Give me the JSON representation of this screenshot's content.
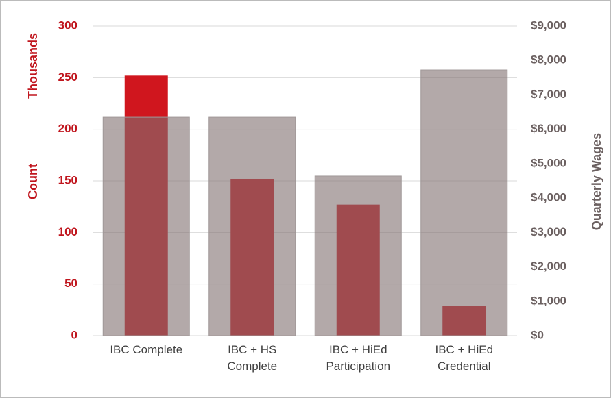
{
  "chart_data": {
    "type": "bar",
    "categories": [
      "IBC Complete",
      "IBC + HS Complete",
      "IBC + HiEd Participation",
      "IBC + HiEd Credential"
    ],
    "series": [
      {
        "name": "Count",
        "color": "#d0161e",
        "values": [
          252,
          152,
          127,
          29
        ]
      },
      {
        "name": "Quarterly Wages",
        "color": "#807070",
        "axis": "y2",
        "values": [
          6350,
          6350,
          4640,
          7725
        ]
      }
    ],
    "ylabel": "Count",
    "yunit": "Thousands",
    "y2label": "Quarterly Wages",
    "ylim": [
      0,
      300
    ],
    "yticks": [
      0,
      50,
      100,
      150,
      200,
      250,
      300
    ],
    "y2lim": [
      0,
      9000
    ],
    "y2ticks": [
      {
        "value": 0,
        "label": "$0"
      },
      {
        "value": 1000,
        "label": "$1,000"
      },
      {
        "value": 2000,
        "label": "$2,000"
      },
      {
        "value": 3000,
        "label": "$3,000"
      },
      {
        "value": 4000,
        "label": "$4,000"
      },
      {
        "value": 5000,
        "label": "$5,000"
      },
      {
        "value": 6000,
        "label": "$6,000"
      },
      {
        "value": 7000,
        "label": "$7,000"
      },
      {
        "value": 8000,
        "label": "$8,000"
      },
      {
        "value": 9000,
        "label": "$9,000"
      }
    ],
    "grid": true
  }
}
